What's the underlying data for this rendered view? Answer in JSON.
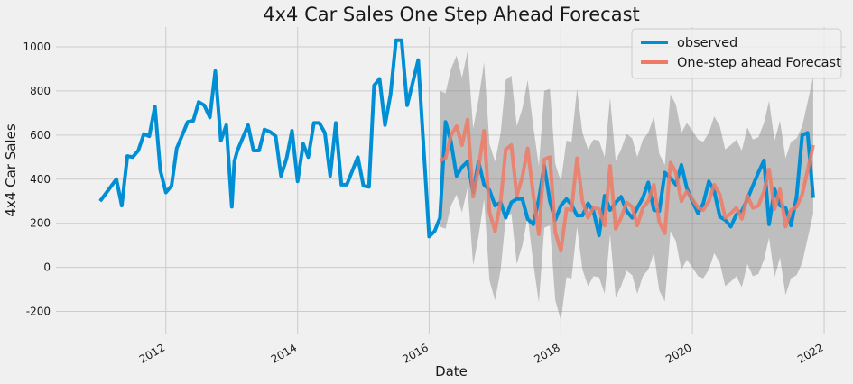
{
  "chart_data": {
    "type": "line",
    "title": "4x4 Car Sales One Step Ahead Forecast",
    "xlabel": "Date",
    "ylabel": "4x4 Car Sales",
    "xlim": [
      "2010-05-01",
      "2022-05-01"
    ],
    "ylim": [
      -300,
      1090
    ],
    "x_ticks": [
      "2012",
      "2014",
      "2016",
      "2018",
      "2020",
      "2022"
    ],
    "y_ticks": [
      -200,
      0,
      200,
      400,
      600,
      800,
      1000
    ],
    "grid": true,
    "legend_position": "top-right",
    "series": [
      {
        "name": "observed",
        "color": "#008fd5",
        "points": [
          [
            "2011-01-01",
            300
          ],
          [
            "2011-04-01",
            400
          ],
          [
            "2011-05-01",
            280
          ],
          [
            "2011-06-01",
            505
          ],
          [
            "2011-07-01",
            500
          ],
          [
            "2011-08-01",
            530
          ],
          [
            "2011-09-01",
            605
          ],
          [
            "2011-10-01",
            595
          ],
          [
            "2011-11-01",
            730
          ],
          [
            "2011-12-01",
            440
          ],
          [
            "2012-01-01",
            340
          ],
          [
            "2012-02-01",
            370
          ],
          [
            "2012-03-01",
            540
          ],
          [
            "2012-04-01",
            600
          ],
          [
            "2012-05-01",
            660
          ],
          [
            "2012-06-01",
            665
          ],
          [
            "2012-07-01",
            750
          ],
          [
            "2012-08-01",
            735
          ],
          [
            "2012-09-01",
            680
          ],
          [
            "2012-10-01",
            890
          ],
          [
            "2012-11-01",
            575
          ],
          [
            "2012-12-01",
            645
          ],
          [
            "2013-01-01",
            275
          ],
          [
            "2013-01-15",
            480
          ],
          [
            "2013-02-01",
            530
          ],
          [
            "2013-04-01",
            645
          ],
          [
            "2013-05-01",
            530
          ],
          [
            "2013-06-01",
            530
          ],
          [
            "2013-07-01",
            625
          ],
          [
            "2013-08-01",
            615
          ],
          [
            "2013-09-01",
            595
          ],
          [
            "2013-10-01",
            415
          ],
          [
            "2013-11-01",
            495
          ],
          [
            "2013-12-01",
            620
          ],
          [
            "2014-01-01",
            390
          ],
          [
            "2014-02-01",
            560
          ],
          [
            "2014-03-01",
            500
          ],
          [
            "2014-04-01",
            655
          ],
          [
            "2014-05-01",
            655
          ],
          [
            "2014-06-01",
            610
          ],
          [
            "2014-07-01",
            415
          ],
          [
            "2014-08-01",
            655
          ],
          [
            "2014-09-01",
            375
          ],
          [
            "2014-10-01",
            375
          ],
          [
            "2014-12-01",
            500
          ],
          [
            "2015-01-01",
            370
          ],
          [
            "2015-02-01",
            365
          ],
          [
            "2015-03-01",
            825
          ],
          [
            "2015-04-01",
            855
          ],
          [
            "2015-05-01",
            645
          ],
          [
            "2015-06-01",
            785
          ],
          [
            "2015-07-01",
            1030
          ],
          [
            "2015-08-01",
            1030
          ],
          [
            "2015-09-01",
            735
          ],
          [
            "2015-11-01",
            940
          ],
          [
            "2016-01-01",
            140
          ],
          [
            "2016-02-01",
            165
          ],
          [
            "2016-03-01",
            225
          ],
          [
            "2016-04-01",
            660
          ],
          [
            "2016-05-01",
            570
          ],
          [
            "2016-06-01",
            415
          ],
          [
            "2016-07-01",
            455
          ],
          [
            "2016-08-01",
            480
          ],
          [
            "2016-09-01",
            340
          ],
          [
            "2016-10-01",
            480
          ],
          [
            "2016-11-01",
            375
          ],
          [
            "2016-12-01",
            350
          ],
          [
            "2017-01-01",
            280
          ],
          [
            "2017-02-01",
            295
          ],
          [
            "2017-03-01",
            225
          ],
          [
            "2017-04-01",
            295
          ],
          [
            "2017-05-01",
            310
          ],
          [
            "2017-06-01",
            310
          ],
          [
            "2017-07-01",
            220
          ],
          [
            "2017-08-01",
            195
          ],
          [
            "2017-09-01",
            310
          ],
          [
            "2017-10-01",
            460
          ],
          [
            "2017-11-01",
            300
          ],
          [
            "2017-12-01",
            215
          ],
          [
            "2018-01-01",
            280
          ],
          [
            "2018-02-01",
            310
          ],
          [
            "2018-03-01",
            285
          ],
          [
            "2018-04-01",
            235
          ],
          [
            "2018-05-01",
            235
          ],
          [
            "2018-06-01",
            290
          ],
          [
            "2018-07-01",
            255
          ],
          [
            "2018-08-01",
            145
          ],
          [
            "2018-09-01",
            325
          ],
          [
            "2018-10-01",
            260
          ],
          [
            "2018-11-01",
            295
          ],
          [
            "2018-12-01",
            320
          ],
          [
            "2019-01-01",
            255
          ],
          [
            "2019-02-01",
            225
          ],
          [
            "2019-03-01",
            270
          ],
          [
            "2019-04-01",
            315
          ],
          [
            "2019-05-01",
            385
          ],
          [
            "2019-06-01",
            260
          ],
          [
            "2019-07-01",
            255
          ],
          [
            "2019-08-01",
            430
          ],
          [
            "2019-09-01",
            405
          ],
          [
            "2019-10-01",
            375
          ],
          [
            "2019-11-01",
            465
          ],
          [
            "2019-12-01",
            360
          ],
          [
            "2020-01-01",
            300
          ],
          [
            "2020-02-01",
            245
          ],
          [
            "2020-03-01",
            290
          ],
          [
            "2020-04-01",
            390
          ],
          [
            "2020-05-01",
            345
          ],
          [
            "2020-06-01",
            230
          ],
          [
            "2020-07-01",
            215
          ],
          [
            "2020-08-01",
            185
          ],
          [
            "2020-09-01",
            240
          ],
          [
            "2020-10-01",
            255
          ],
          [
            "2020-11-01",
            310
          ],
          [
            "2020-12-01",
            370
          ],
          [
            "2021-01-01",
            430
          ],
          [
            "2021-02-01",
            485
          ],
          [
            "2021-03-01",
            195
          ],
          [
            "2021-04-01",
            355
          ],
          [
            "2021-05-01",
            280
          ],
          [
            "2021-06-01",
            270
          ],
          [
            "2021-07-01",
            190
          ],
          [
            "2021-08-01",
            320
          ],
          [
            "2021-09-01",
            600
          ],
          [
            "2021-10-01",
            610
          ],
          [
            "2021-11-01",
            315
          ]
        ]
      },
      {
        "name": "One-step ahead Forecast",
        "color": "#ef7a65",
        "points": [
          [
            "2016-03-01",
            485
          ],
          [
            "2016-04-01",
            495
          ],
          [
            "2016-05-01",
            600
          ],
          [
            "2016-06-01",
            640
          ],
          [
            "2016-07-01",
            555
          ],
          [
            "2016-08-01",
            670
          ],
          [
            "2016-09-01",
            320
          ],
          [
            "2016-10-01",
            450
          ],
          [
            "2016-11-01",
            620
          ],
          [
            "2016-12-01",
            250
          ],
          [
            "2017-01-01",
            165
          ],
          [
            "2017-02-01",
            300
          ],
          [
            "2017-03-01",
            535
          ],
          [
            "2017-04-01",
            555
          ],
          [
            "2017-05-01",
            325
          ],
          [
            "2017-06-01",
            410
          ],
          [
            "2017-07-01",
            540
          ],
          [
            "2017-08-01",
            330
          ],
          [
            "2017-09-01",
            150
          ],
          [
            "2017-10-01",
            490
          ],
          [
            "2017-11-01",
            500
          ],
          [
            "2017-12-01",
            160
          ],
          [
            "2018-01-01",
            75
          ],
          [
            "2018-02-01",
            265
          ],
          [
            "2018-03-01",
            260
          ],
          [
            "2018-04-01",
            495
          ],
          [
            "2018-05-01",
            300
          ],
          [
            "2018-06-01",
            225
          ],
          [
            "2018-07-01",
            270
          ],
          [
            "2018-08-01",
            265
          ],
          [
            "2018-09-01",
            190
          ],
          [
            "2018-10-01",
            460
          ],
          [
            "2018-11-01",
            175
          ],
          [
            "2018-12-01",
            225
          ],
          [
            "2019-01-01",
            295
          ],
          [
            "2019-02-01",
            275
          ],
          [
            "2019-03-01",
            190
          ],
          [
            "2019-04-01",
            270
          ],
          [
            "2019-05-01",
            300
          ],
          [
            "2019-06-01",
            375
          ],
          [
            "2019-07-01",
            205
          ],
          [
            "2019-08-01",
            155
          ],
          [
            "2019-09-01",
            475
          ],
          [
            "2019-10-01",
            430
          ],
          [
            "2019-11-01",
            300
          ],
          [
            "2019-12-01",
            345
          ],
          [
            "2020-01-01",
            310
          ],
          [
            "2020-02-01",
            270
          ],
          [
            "2020-03-01",
            260
          ],
          [
            "2020-04-01",
            300
          ],
          [
            "2020-05-01",
            375
          ],
          [
            "2020-06-01",
            330
          ],
          [
            "2020-07-01",
            225
          ],
          [
            "2020-08-01",
            245
          ],
          [
            "2020-09-01",
            270
          ],
          [
            "2020-10-01",
            220
          ],
          [
            "2020-11-01",
            325
          ],
          [
            "2020-12-01",
            270
          ],
          [
            "2021-01-01",
            280
          ],
          [
            "2021-02-01",
            345
          ],
          [
            "2021-03-01",
            445
          ],
          [
            "2021-04-01",
            265
          ],
          [
            "2021-05-01",
            355
          ],
          [
            "2021-06-01",
            185
          ],
          [
            "2021-07-01",
            260
          ],
          [
            "2021-08-01",
            275
          ],
          [
            "2021-09-01",
            330
          ],
          [
            "2021-10-01",
            440
          ],
          [
            "2021-11-01",
            555
          ]
        ]
      }
    ],
    "confidence_band": {
      "color": "#808080",
      "points": [
        [
          "2016-03-01",
          185,
          800
        ],
        [
          "2016-04-01",
          175,
          790
        ],
        [
          "2016-05-01",
          280,
          900
        ],
        [
          "2016-06-01",
          330,
          960
        ],
        [
          "2016-07-01",
          250,
          860
        ],
        [
          "2016-08-01",
          360,
          980
        ],
        [
          "2016-09-01",
          10,
          630
        ],
        [
          "2016-10-01",
          140,
          760
        ],
        [
          "2016-11-01",
          310,
          930
        ],
        [
          "2016-12-01",
          -60,
          560
        ],
        [
          "2017-01-01",
          -150,
          480
        ],
        [
          "2017-02-01",
          -10,
          610
        ],
        [
          "2017-03-01",
          225,
          850
        ],
        [
          "2017-04-01",
          245,
          870
        ],
        [
          "2017-05-01",
          15,
          640
        ],
        [
          "2017-06-01",
          100,
          720
        ],
        [
          "2017-07-01",
          230,
          850
        ],
        [
          "2017-08-01",
          20,
          640
        ],
        [
          "2017-09-01",
          -160,
          460
        ],
        [
          "2017-10-01",
          180,
          800
        ],
        [
          "2017-11-01",
          190,
          810
        ],
        [
          "2017-12-01",
          -150,
          470
        ],
        [
          "2018-01-01",
          -240,
          390
        ],
        [
          "2018-02-01",
          -45,
          575
        ],
        [
          "2018-03-01",
          -50,
          570
        ],
        [
          "2018-04-01",
          185,
          810
        ],
        [
          "2018-05-01",
          -10,
          610
        ],
        [
          "2018-06-01",
          -85,
          535
        ],
        [
          "2018-07-01",
          -40,
          580
        ],
        [
          "2018-08-01",
          -45,
          575
        ],
        [
          "2018-09-01",
          -120,
          500
        ],
        [
          "2018-10-01",
          150,
          770
        ],
        [
          "2018-11-01",
          -135,
          485
        ],
        [
          "2018-12-01",
          -85,
          535
        ],
        [
          "2019-01-01",
          -15,
          605
        ],
        [
          "2019-02-01",
          -35,
          585
        ],
        [
          "2019-03-01",
          -120,
          500
        ],
        [
          "2019-04-01",
          -40,
          580
        ],
        [
          "2019-05-01",
          -10,
          610
        ],
        [
          "2019-06-01",
          65,
          685
        ],
        [
          "2019-07-01",
          -105,
          515
        ],
        [
          "2019-08-01",
          -155,
          465
        ],
        [
          "2019-09-01",
          165,
          785
        ],
        [
          "2019-10-01",
          120,
          740
        ],
        [
          "2019-11-01",
          -10,
          610
        ],
        [
          "2019-12-01",
          35,
          655
        ],
        [
          "2020-01-01",
          0,
          620
        ],
        [
          "2020-02-01",
          -40,
          580
        ],
        [
          "2020-03-01",
          -50,
          570
        ],
        [
          "2020-04-01",
          -10,
          610
        ],
        [
          "2020-05-01",
          65,
          685
        ],
        [
          "2020-06-01",
          20,
          640
        ],
        [
          "2020-07-01",
          -85,
          535
        ],
        [
          "2020-08-01",
          -65,
          555
        ],
        [
          "2020-09-01",
          -40,
          580
        ],
        [
          "2020-10-01",
          -90,
          530
        ],
        [
          "2020-11-01",
          15,
          635
        ],
        [
          "2020-12-01",
          -40,
          580
        ],
        [
          "2021-01-01",
          -30,
          590
        ],
        [
          "2021-02-01",
          35,
          655
        ],
        [
          "2021-03-01",
          135,
          755
        ],
        [
          "2021-04-01",
          -45,
          575
        ],
        [
          "2021-05-01",
          45,
          665
        ],
        [
          "2021-06-01",
          -125,
          495
        ],
        [
          "2021-07-01",
          -50,
          570
        ],
        [
          "2021-08-01",
          -35,
          585
        ],
        [
          "2021-09-01",
          20,
          640
        ],
        [
          "2021-10-01",
          130,
          750
        ],
        [
          "2021-11-01",
          245,
          865
        ]
      ]
    }
  }
}
